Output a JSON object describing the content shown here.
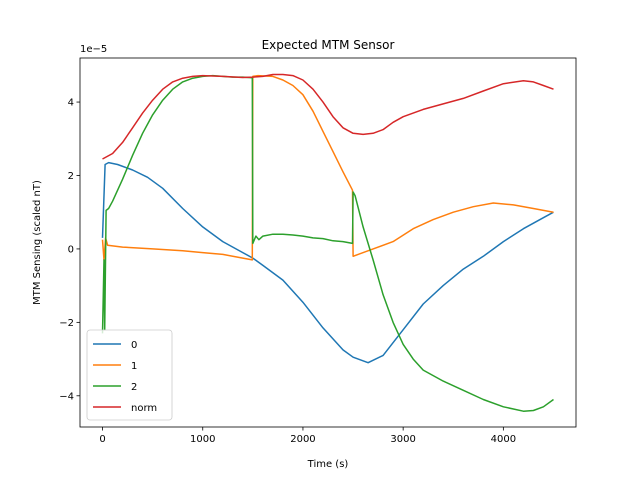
{
  "chart_data": {
    "type": "line",
    "title": "Expected MTM Sensor",
    "xlabel": "Time (s)",
    "ylabel": "MTM Sensing (scaled nT)",
    "y_offset_text": "1e−5",
    "xlim": [
      -225,
      4725
    ],
    "ylim": [
      -4.85,
      5.2
    ],
    "y_scale_note": "values in units of 1e-5",
    "x_ticks": [
      0,
      1000,
      2000,
      3000,
      4000
    ],
    "x_tick_labels": [
      "0",
      "1000",
      "2000",
      "3000",
      "4000"
    ],
    "y_ticks": [
      -4,
      -2,
      0,
      2,
      4
    ],
    "y_tick_labels": [
      "−4",
      "−2",
      "0",
      "2",
      "4"
    ],
    "grid": false,
    "legend_position": "lower-left",
    "series": [
      {
        "name": "0",
        "color": "#1f77b4",
        "points": [
          [
            0,
            0.3
          ],
          [
            25,
            2.3
          ],
          [
            60,
            2.35
          ],
          [
            150,
            2.3
          ],
          [
            300,
            2.15
          ],
          [
            450,
            1.95
          ],
          [
            600,
            1.65
          ],
          [
            800,
            1.1
          ],
          [
            1000,
            0.6
          ],
          [
            1200,
            0.2
          ],
          [
            1400,
            -0.1
          ],
          [
            1500,
            -0.25
          ],
          [
            1600,
            -0.45
          ],
          [
            1800,
            -0.85
          ],
          [
            2000,
            -1.45
          ],
          [
            2200,
            -2.15
          ],
          [
            2400,
            -2.75
          ],
          [
            2500,
            -2.95
          ],
          [
            2650,
            -3.1
          ],
          [
            2800,
            -2.9
          ],
          [
            3000,
            -2.2
          ],
          [
            3200,
            -1.5
          ],
          [
            3400,
            -1.0
          ],
          [
            3600,
            -0.55
          ],
          [
            3800,
            -0.2
          ],
          [
            4000,
            0.2
          ],
          [
            4200,
            0.55
          ],
          [
            4400,
            0.85
          ],
          [
            4500,
            1.0
          ]
        ]
      },
      {
        "name": "1",
        "color": "#ff7f0e",
        "points": [
          [
            0,
            0.25
          ],
          [
            15,
            -0.3
          ],
          [
            30,
            0.3
          ],
          [
            50,
            0.1
          ],
          [
            200,
            0.05
          ],
          [
            500,
            0.0
          ],
          [
            800,
            -0.05
          ],
          [
            1000,
            -0.1
          ],
          [
            1200,
            -0.15
          ],
          [
            1400,
            -0.25
          ],
          [
            1495,
            -0.3
          ],
          [
            1500,
            4.7
          ],
          [
            1550,
            4.72
          ],
          [
            1700,
            4.7
          ],
          [
            1800,
            4.6
          ],
          [
            1900,
            4.45
          ],
          [
            2000,
            4.2
          ],
          [
            2100,
            3.75
          ],
          [
            2200,
            3.2
          ],
          [
            2300,
            2.65
          ],
          [
            2400,
            2.1
          ],
          [
            2495,
            1.6
          ],
          [
            2500,
            -0.2
          ],
          [
            2550,
            -0.15
          ],
          [
            2700,
            0.0
          ],
          [
            2900,
            0.2
          ],
          [
            3100,
            0.55
          ],
          [
            3300,
            0.8
          ],
          [
            3500,
            1.0
          ],
          [
            3700,
            1.15
          ],
          [
            3900,
            1.25
          ],
          [
            4100,
            1.2
          ],
          [
            4300,
            1.1
          ],
          [
            4500,
            1.0
          ]
        ]
      },
      {
        "name": "2",
        "color": "#2ca02c",
        "points": [
          [
            0,
            -2.3
          ],
          [
            15,
            -0.3
          ],
          [
            22,
            -2.2
          ],
          [
            35,
            1.05
          ],
          [
            60,
            1.1
          ],
          [
            100,
            1.3
          ],
          [
            200,
            1.9
          ],
          [
            300,
            2.55
          ],
          [
            400,
            3.15
          ],
          [
            500,
            3.65
          ],
          [
            600,
            4.05
          ],
          [
            700,
            4.35
          ],
          [
            800,
            4.55
          ],
          [
            900,
            4.65
          ],
          [
            1000,
            4.7
          ],
          [
            1100,
            4.72
          ],
          [
            1200,
            4.7
          ],
          [
            1300,
            4.68
          ],
          [
            1400,
            4.68
          ],
          [
            1495,
            4.66
          ],
          [
            1500,
            0.15
          ],
          [
            1530,
            0.35
          ],
          [
            1560,
            0.25
          ],
          [
            1600,
            0.35
          ],
          [
            1700,
            0.4
          ],
          [
            1800,
            0.4
          ],
          [
            1900,
            0.38
          ],
          [
            2000,
            0.35
          ],
          [
            2100,
            0.3
          ],
          [
            2200,
            0.28
          ],
          [
            2300,
            0.22
          ],
          [
            2400,
            0.2
          ],
          [
            2495,
            0.15
          ],
          [
            2500,
            1.55
          ],
          [
            2520,
            1.45
          ],
          [
            2600,
            0.6
          ],
          [
            2700,
            -0.3
          ],
          [
            2800,
            -1.25
          ],
          [
            2900,
            -2.0
          ],
          [
            3000,
            -2.6
          ],
          [
            3100,
            -3.0
          ],
          [
            3200,
            -3.3
          ],
          [
            3400,
            -3.6
          ],
          [
            3600,
            -3.85
          ],
          [
            3800,
            -4.1
          ],
          [
            4000,
            -4.3
          ],
          [
            4200,
            -4.42
          ],
          [
            4300,
            -4.4
          ],
          [
            4400,
            -4.3
          ],
          [
            4500,
            -4.1
          ]
        ]
      },
      {
        "name": "norm",
        "color": "#d62728",
        "points": [
          [
            0,
            2.45
          ],
          [
            100,
            2.6
          ],
          [
            200,
            2.9
          ],
          [
            300,
            3.3
          ],
          [
            400,
            3.7
          ],
          [
            500,
            4.05
          ],
          [
            600,
            4.35
          ],
          [
            700,
            4.55
          ],
          [
            800,
            4.65
          ],
          [
            900,
            4.7
          ],
          [
            1000,
            4.72
          ],
          [
            1200,
            4.7
          ],
          [
            1400,
            4.67
          ],
          [
            1500,
            4.68
          ],
          [
            1600,
            4.7
          ],
          [
            1700,
            4.75
          ],
          [
            1800,
            4.75
          ],
          [
            1900,
            4.72
          ],
          [
            2000,
            4.6
          ],
          [
            2100,
            4.35
          ],
          [
            2200,
            4.0
          ],
          [
            2300,
            3.6
          ],
          [
            2400,
            3.3
          ],
          [
            2500,
            3.15
          ],
          [
            2600,
            3.12
          ],
          [
            2700,
            3.15
          ],
          [
            2800,
            3.25
          ],
          [
            2900,
            3.45
          ],
          [
            3000,
            3.6
          ],
          [
            3200,
            3.8
          ],
          [
            3400,
            3.95
          ],
          [
            3600,
            4.1
          ],
          [
            3800,
            4.3
          ],
          [
            4000,
            4.5
          ],
          [
            4200,
            4.58
          ],
          [
            4300,
            4.55
          ],
          [
            4400,
            4.45
          ],
          [
            4500,
            4.35
          ]
        ]
      }
    ]
  }
}
